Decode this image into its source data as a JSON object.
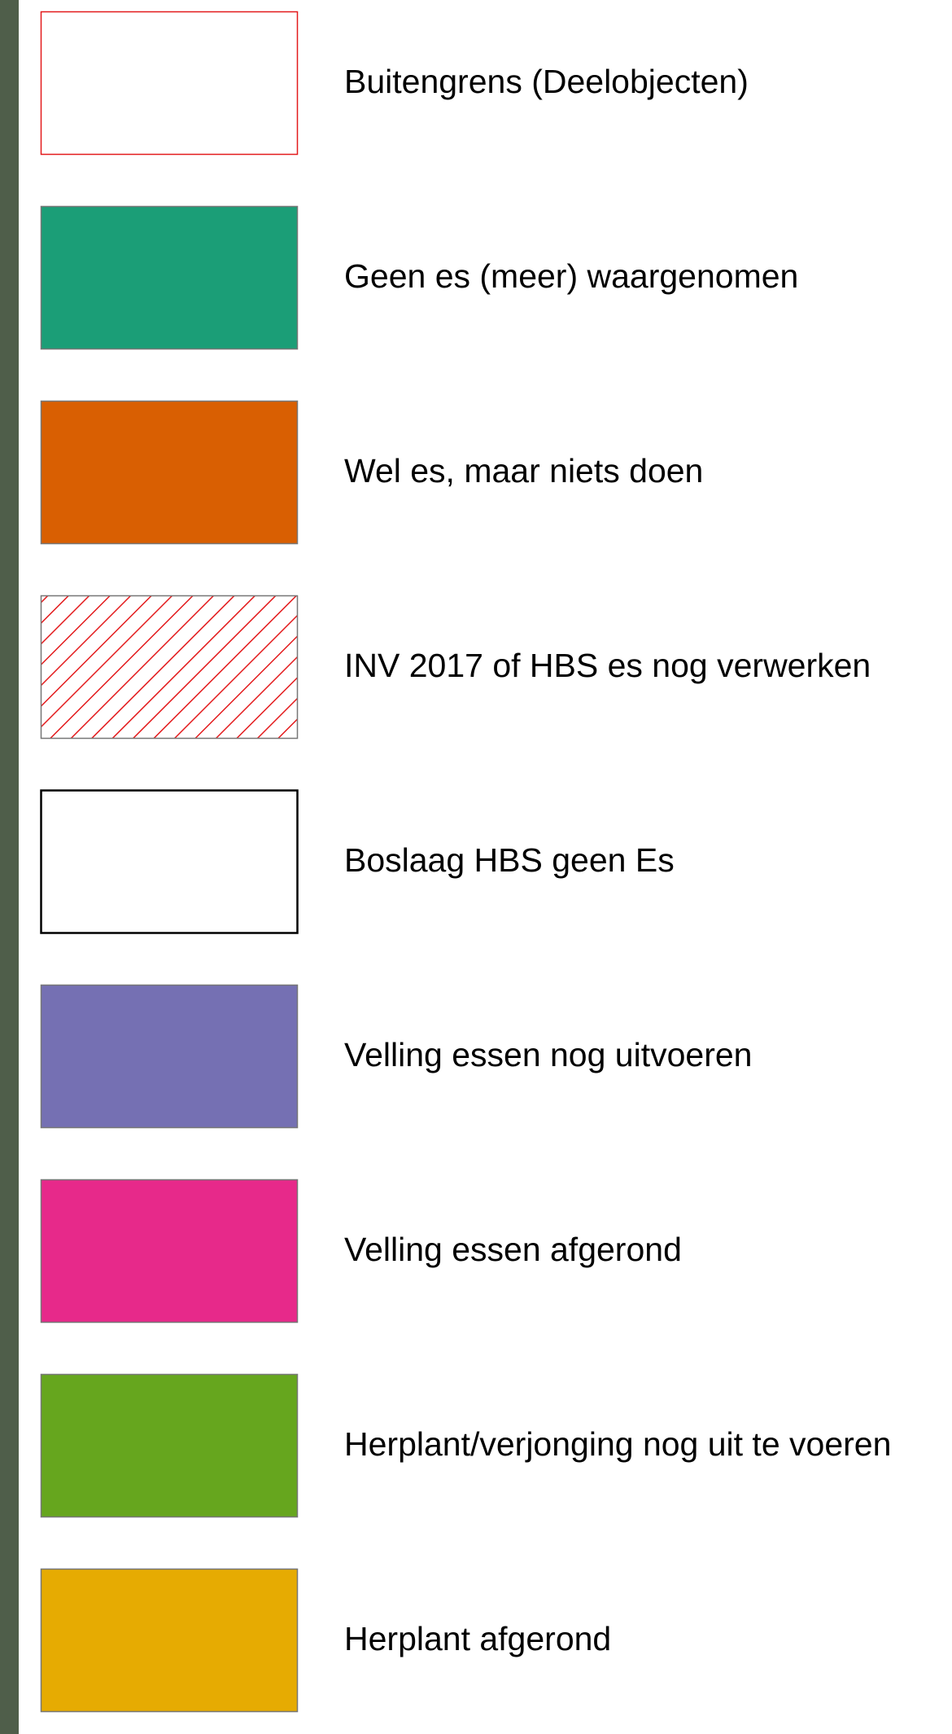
{
  "legend": {
    "items": [
      {
        "label": "Buitengrens (Deelobjecten)"
      },
      {
        "label": "Geen es (meer) waargenomen"
      },
      {
        "label": "Wel es, maar niets doen"
      },
      {
        "label": "INV 2017 of HBS es nog verwerken"
      },
      {
        "label": "Boslaag HBS geen Es"
      },
      {
        "label": "Velling essen nog uitvoeren"
      },
      {
        "label": "Velling essen afgerond"
      },
      {
        "label": "Herplant/verjonging nog uit te voeren"
      },
      {
        "label": "Herplant afgerond"
      }
    ]
  }
}
